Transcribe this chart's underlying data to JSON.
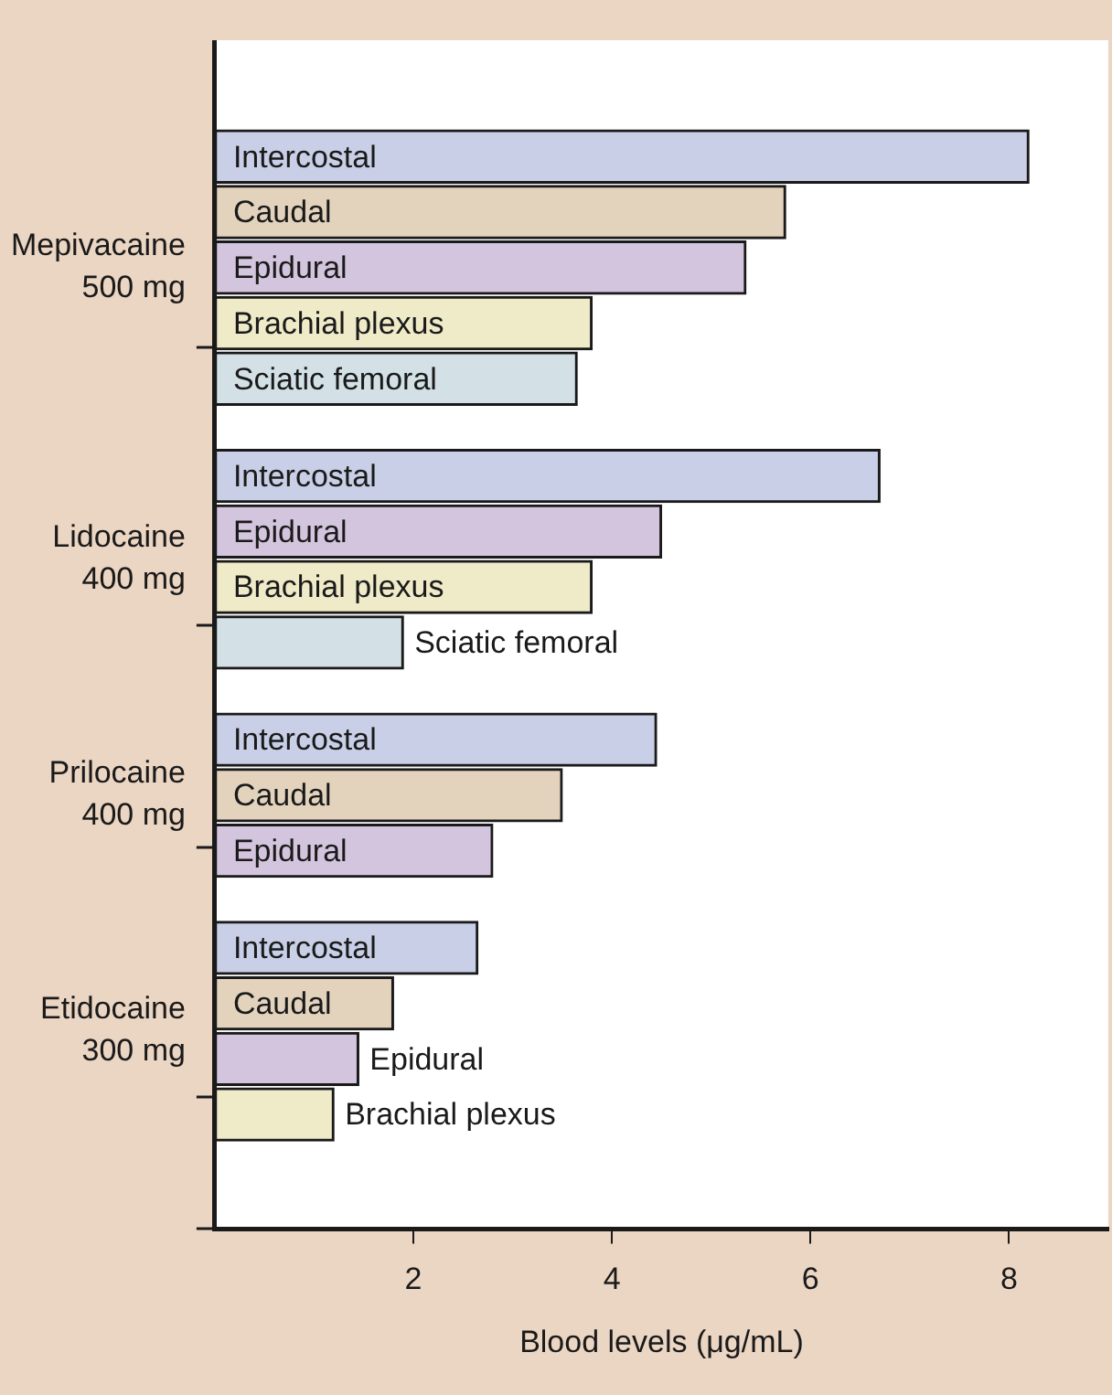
{
  "chart_data": {
    "type": "bar",
    "orientation": "horizontal",
    "categories": [
      "Mepivacaine\n500 mg",
      "Lidocaine\n400 mg",
      "Prilocaine\n400 mg",
      "Etidocaine\n300 mg"
    ],
    "series": [
      {
        "name": "Intercostal",
        "color": "#c8cfe6",
        "values": [
          8.2,
          6.7,
          4.45,
          2.65
        ]
      },
      {
        "name": "Caudal",
        "color": "#e3d3bd",
        "values": [
          5.75,
          null,
          3.5,
          1.8
        ]
      },
      {
        "name": "Epidural",
        "color": "#d4c5de",
        "values": [
          5.35,
          4.5,
          2.8,
          1.45
        ]
      },
      {
        "name": "Brachial plexus",
        "color": "#efeac8",
        "values": [
          3.8,
          3.8,
          null,
          1.2
        ]
      },
      {
        "name": "Sciatic femoral",
        "color": "#d3e1e6",
        "values": [
          3.65,
          1.9,
          null,
          null
        ]
      }
    ],
    "xlabel": "Blood levels (μg/mL)",
    "xlim": [
      0,
      9
    ],
    "xticks": [
      2,
      4,
      6,
      8
    ],
    "grid": false
  }
}
